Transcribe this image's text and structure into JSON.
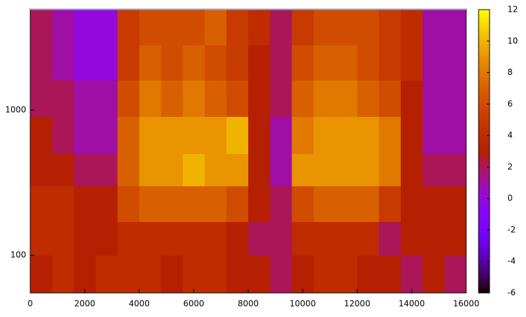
{
  "chart_data": {
    "type": "heatmap",
    "x_edges": [
      0,
      800,
      1600,
      2400,
      3200,
      4000,
      4800,
      5600,
      6400,
      7200,
      8000,
      8800,
      9600,
      10400,
      11200,
      12000,
      12800,
      13600,
      14400,
      15200,
      16000
    ],
    "y_edges": [
      55,
      100,
      170,
      300,
      500,
      900,
      1600,
      2800,
      4900
    ],
    "z": [
      [
        3,
        4,
        3,
        4,
        4,
        4,
        3,
        4,
        4,
        3,
        3,
        2,
        3,
        4,
        4,
        3,
        3,
        2,
        3,
        2
      ],
      [
        4,
        4,
        3,
        3,
        4,
        4,
        4,
        4,
        4,
        3,
        2,
        2,
        4,
        4,
        4,
        4,
        2,
        3,
        3,
        3
      ],
      [
        4,
        4,
        3,
        3,
        6,
        7,
        7,
        7,
        7,
        6,
        3,
        2,
        6,
        7,
        7,
        7,
        5,
        3,
        3,
        3
      ],
      [
        3,
        3,
        2,
        2,
        7,
        9,
        9,
        10,
        9,
        9,
        3,
        1,
        9,
        9,
        9,
        9,
        8,
        3,
        2,
        2
      ],
      [
        3,
        2,
        1,
        1,
        7,
        9,
        9,
        9,
        9,
        10,
        3,
        1,
        8,
        9,
        9,
        9,
        8,
        3,
        1,
        1
      ],
      [
        2,
        2,
        1,
        1,
        6,
        8,
        7,
        8,
        7,
        6,
        3,
        2,
        7,
        8,
        8,
        7,
        6,
        3,
        1,
        1
      ],
      [
        2,
        1,
        0,
        0,
        5,
        7,
        6,
        7,
        6,
        5,
        3,
        2,
        6,
        7,
        7,
        6,
        5,
        4,
        1,
        1
      ],
      [
        2,
        1,
        0,
        0,
        5,
        6,
        6,
        6,
        7,
        5,
        4,
        2,
        5,
        6,
        6,
        6,
        5,
        4,
        1,
        1
      ]
    ],
    "xlim": [
      0,
      16000
    ],
    "xticks": [
      0,
      2000,
      4000,
      6000,
      8000,
      10000,
      12000,
      14000,
      16000
    ],
    "ylim": [
      55,
      4900
    ],
    "yticks": [
      100,
      1000
    ],
    "ylog": true,
    "cblim": [
      -6,
      12
    ],
    "cbticks": [
      -6,
      -4,
      -2,
      0,
      2,
      4,
      6,
      8,
      10,
      12
    ],
    "palette": "gnuplot-rgb-7-5-15"
  }
}
